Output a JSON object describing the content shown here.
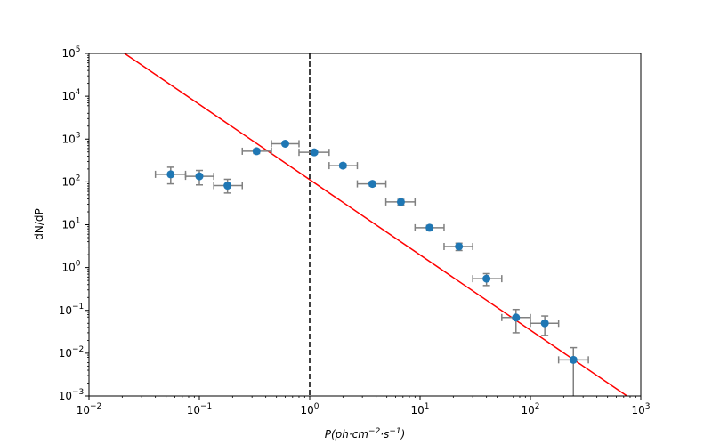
{
  "chart_data": {
    "type": "scatter",
    "xscale": "log",
    "yscale": "log",
    "xlim": [
      0.01,
      1000
    ],
    "ylim": [
      0.001,
      100000
    ],
    "xlabel": "P(ph·cm⁻²·s⁻¹)",
    "ylabel": "dN/dP",
    "grid": false,
    "x_ticks": [
      {
        "value": 0.01,
        "base": "10",
        "exp": "−2"
      },
      {
        "value": 0.1,
        "base": "10",
        "exp": "−1"
      },
      {
        "value": 1,
        "base": "10",
        "exp": "0"
      },
      {
        "value": 10,
        "base": "10",
        "exp": "1"
      },
      {
        "value": 100,
        "base": "10",
        "exp": "2"
      },
      {
        "value": 1000,
        "base": "10",
        "exp": "3"
      }
    ],
    "y_ticks": [
      {
        "value": 0.001,
        "base": "10",
        "exp": "−3"
      },
      {
        "value": 0.01,
        "base": "10",
        "exp": "−2"
      },
      {
        "value": 0.1,
        "base": "10",
        "exp": "−1"
      },
      {
        "value": 1,
        "base": "10",
        "exp": "0"
      },
      {
        "value": 10,
        "base": "10",
        "exp": "1"
      },
      {
        "value": 100,
        "base": "10",
        "exp": "2"
      },
      {
        "value": 1000,
        "base": "10",
        "exp": "3"
      },
      {
        "value": 10000,
        "base": "10",
        "exp": "4"
      },
      {
        "value": 100000,
        "base": "10",
        "exp": "5"
      }
    ],
    "points": [
      {
        "x": 0.055,
        "y": 150,
        "xlo": 0.04,
        "xhi": 0.075,
        "ylo": 90,
        "yhi": 220
      },
      {
        "x": 0.1,
        "y": 135,
        "xlo": 0.075,
        "xhi": 0.135,
        "ylo": 85,
        "yhi": 185
      },
      {
        "x": 0.18,
        "y": 82,
        "xlo": 0.135,
        "xhi": 0.245,
        "ylo": 55,
        "yhi": 115
      },
      {
        "x": 0.33,
        "y": 520,
        "xlo": 0.245,
        "xhi": 0.45,
        "ylo": 460,
        "yhi": 580
      },
      {
        "x": 0.6,
        "y": 780,
        "xlo": 0.45,
        "xhi": 0.8,
        "ylo": 720,
        "yhi": 840
      },
      {
        "x": 1.1,
        "y": 490,
        "xlo": 0.8,
        "xhi": 1.5,
        "ylo": 450,
        "yhi": 530
      },
      {
        "x": 2.0,
        "y": 240,
        "xlo": 1.5,
        "xhi": 2.7,
        "ylo": 215,
        "yhi": 265
      },
      {
        "x": 3.7,
        "y": 90,
        "xlo": 2.7,
        "xhi": 4.9,
        "ylo": 80,
        "yhi": 100
      },
      {
        "x": 6.7,
        "y": 34,
        "xlo": 4.9,
        "xhi": 9.0,
        "ylo": 29,
        "yhi": 39
      },
      {
        "x": 12.2,
        "y": 8.5,
        "xlo": 9.0,
        "xhi": 16.5,
        "ylo": 7.3,
        "yhi": 9.7
      },
      {
        "x": 22.5,
        "y": 3.1,
        "xlo": 16.5,
        "xhi": 30,
        "ylo": 2.5,
        "yhi": 3.7
      },
      {
        "x": 40,
        "y": 0.55,
        "xlo": 30,
        "xhi": 55,
        "ylo": 0.38,
        "yhi": 0.72
      },
      {
        "x": 74,
        "y": 0.068,
        "xlo": 55,
        "xhi": 100,
        "ylo": 0.03,
        "yhi": 0.105
      },
      {
        "x": 135,
        "y": 0.05,
        "xlo": 100,
        "xhi": 180,
        "ylo": 0.026,
        "yhi": 0.074
      },
      {
        "x": 245,
        "y": 0.007,
        "xlo": 180,
        "xhi": 335,
        "ylo": 0.001,
        "yhi": 0.0135
      }
    ],
    "fit_line": {
      "x": [
        0.021,
        750
      ],
      "y": [
        100000,
        0.001
      ]
    },
    "vline_x": 1.0,
    "colors": {
      "points": "#1f77b4",
      "errorbars": "#808080",
      "fit": "#ff0000",
      "vline": "#000000",
      "axes": "#000000"
    }
  }
}
